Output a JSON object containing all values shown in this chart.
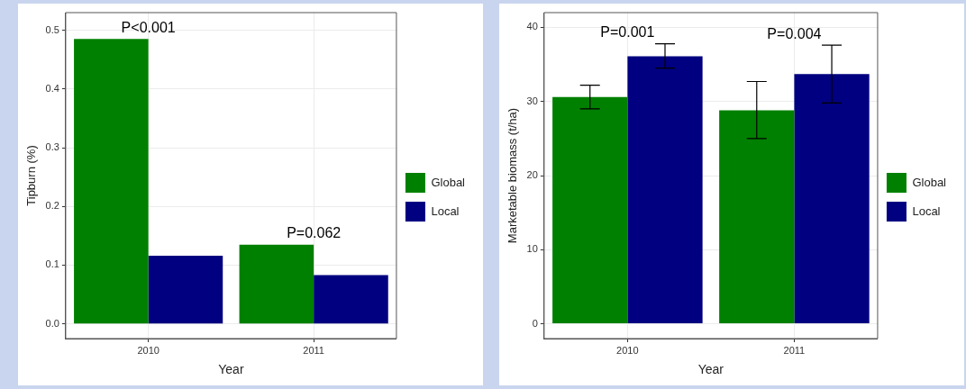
{
  "chart_data": [
    {
      "type": "bar",
      "xlabel": "Year",
      "ylabel": "Tipburn (%)",
      "categories": [
        "2010",
        "2011"
      ],
      "series": [
        {
          "name": "Global",
          "color": "#008000",
          "values": [
            0.485,
            0.135
          ]
        },
        {
          "name": "Local",
          "color": "#000080",
          "values": [
            0.116,
            0.083
          ]
        }
      ],
      "ylim": [
        -0.025,
        0.53
      ],
      "yticks": [
        {
          "value": 0,
          "label": "0.0"
        },
        0.1,
        0.2,
        0.3,
        0.4,
        0.5
      ],
      "grid": true,
      "legend": "right",
      "annotations": [
        "P<0.001",
        "P=0.062"
      ]
    },
    {
      "type": "bar",
      "xlabel": "Year",
      "ylabel": "Marketable biomass (t/ha)",
      "categories": [
        "2010",
        "2011"
      ],
      "series": [
        {
          "name": "Global",
          "color": "#008000",
          "values": [
            30.6,
            28.8
          ],
          "errors": [
            [
              29.0,
              32.2
            ],
            [
              25.0,
              32.7
            ]
          ]
        },
        {
          "name": "Local",
          "color": "#000080",
          "values": [
            36.1,
            33.7
          ],
          "errors": [
            [
              34.5,
              37.8
            ],
            [
              29.8,
              37.6
            ]
          ]
        }
      ],
      "ylim": [
        -2,
        42
      ],
      "yticks": [
        0,
        10,
        20,
        30,
        40
      ],
      "grid": true,
      "legend": "right",
      "annotations": [
        "P=0.001",
        "P=0.004"
      ]
    }
  ]
}
